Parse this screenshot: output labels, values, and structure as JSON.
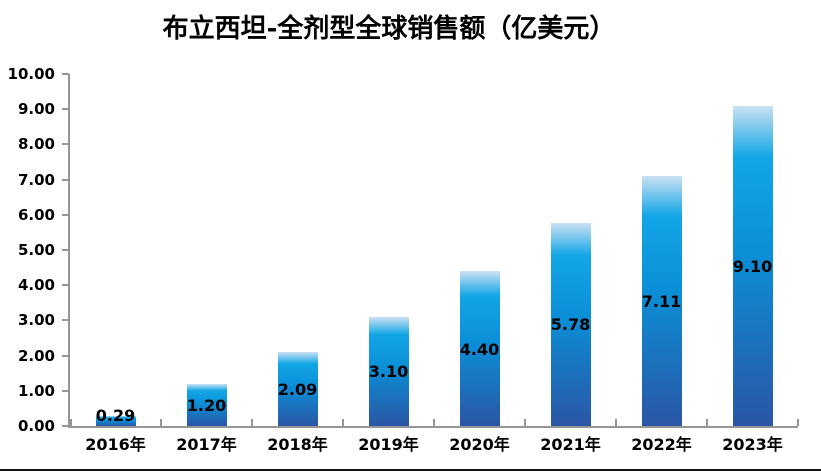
{
  "chart_data": {
    "type": "bar",
    "title": "布立西坦-全剂型全球销售额（亿美元）",
    "categories": [
      "2016年",
      "2017年",
      "2018年",
      "2019年",
      "2020年",
      "2021年",
      "2022年",
      "2023年"
    ],
    "values": [
      0.29,
      1.2,
      2.09,
      3.1,
      4.4,
      5.78,
      7.11,
      9.1
    ],
    "data_labels": [
      "0.29",
      "1.20",
      "2.09",
      "3.10",
      "4.40",
      "5.78",
      "7.11",
      "9.10"
    ],
    "xlabel": "",
    "ylabel": "",
    "ylim": [
      0,
      10
    ],
    "ytick_step": 1,
    "ytick_labels_top_to_bottom": [
      "10.00",
      "9.00",
      "8.00",
      "7.00",
      "6.00",
      "5.00",
      "4.00",
      "3.00",
      "2.00",
      "1.00",
      "0.00"
    ],
    "grid": false,
    "legend": "none",
    "data_label_position": "inside-center",
    "colors": {
      "bar_gradient_stops": [
        {
          "color": "#cbe1f3",
          "pos": "0%"
        },
        {
          "color": "#12a6e6",
          "pos": "16%"
        },
        {
          "color": "#0b90d8",
          "pos": "45%"
        },
        {
          "color": "#2a56a5",
          "pos": "100%"
        }
      ],
      "axis_line": "#969696",
      "text": "#000000",
      "bottom_rule": "#111111"
    }
  }
}
